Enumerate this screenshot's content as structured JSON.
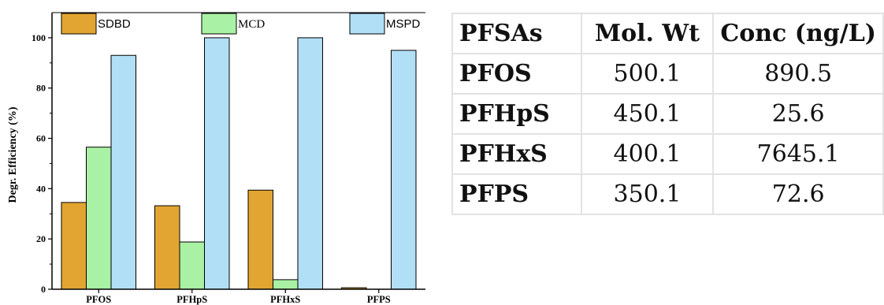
{
  "chart_data": {
    "type": "bar",
    "categories": [
      "PFOS",
      "PFHpS",
      "PFHxS",
      "PFPS"
    ],
    "series": [
      {
        "name": "SDBD",
        "values": [
          34.5,
          33.2,
          39.4,
          0.6
        ],
        "color": "#e3a531"
      },
      {
        "name": "MCD",
        "values": [
          56.5,
          18.8,
          3.8,
          0
        ],
        "color": "#a9f1a4"
      },
      {
        "name": "MSPD",
        "values": [
          93,
          100,
          100,
          95
        ],
        "color": "#b1e0f6"
      }
    ],
    "ylabel": "Degr. Efficiency (%)",
    "ylim": [
      0,
      110
    ],
    "yticks": [
      0,
      20,
      40,
      60,
      80,
      100
    ],
    "legend": "top",
    "grid": false
  },
  "table": {
    "headers": [
      "PFSAs",
      "Mol. Wt",
      "Conc (ng/L)"
    ],
    "rows": [
      [
        "PFOS",
        "500.1",
        "890.5"
      ],
      [
        "PFHpS",
        "450.1",
        "25.6"
      ],
      [
        "PFHxS",
        "400.1",
        "7645.1"
      ],
      [
        "PFPS",
        "350.1",
        "72.6"
      ]
    ]
  }
}
